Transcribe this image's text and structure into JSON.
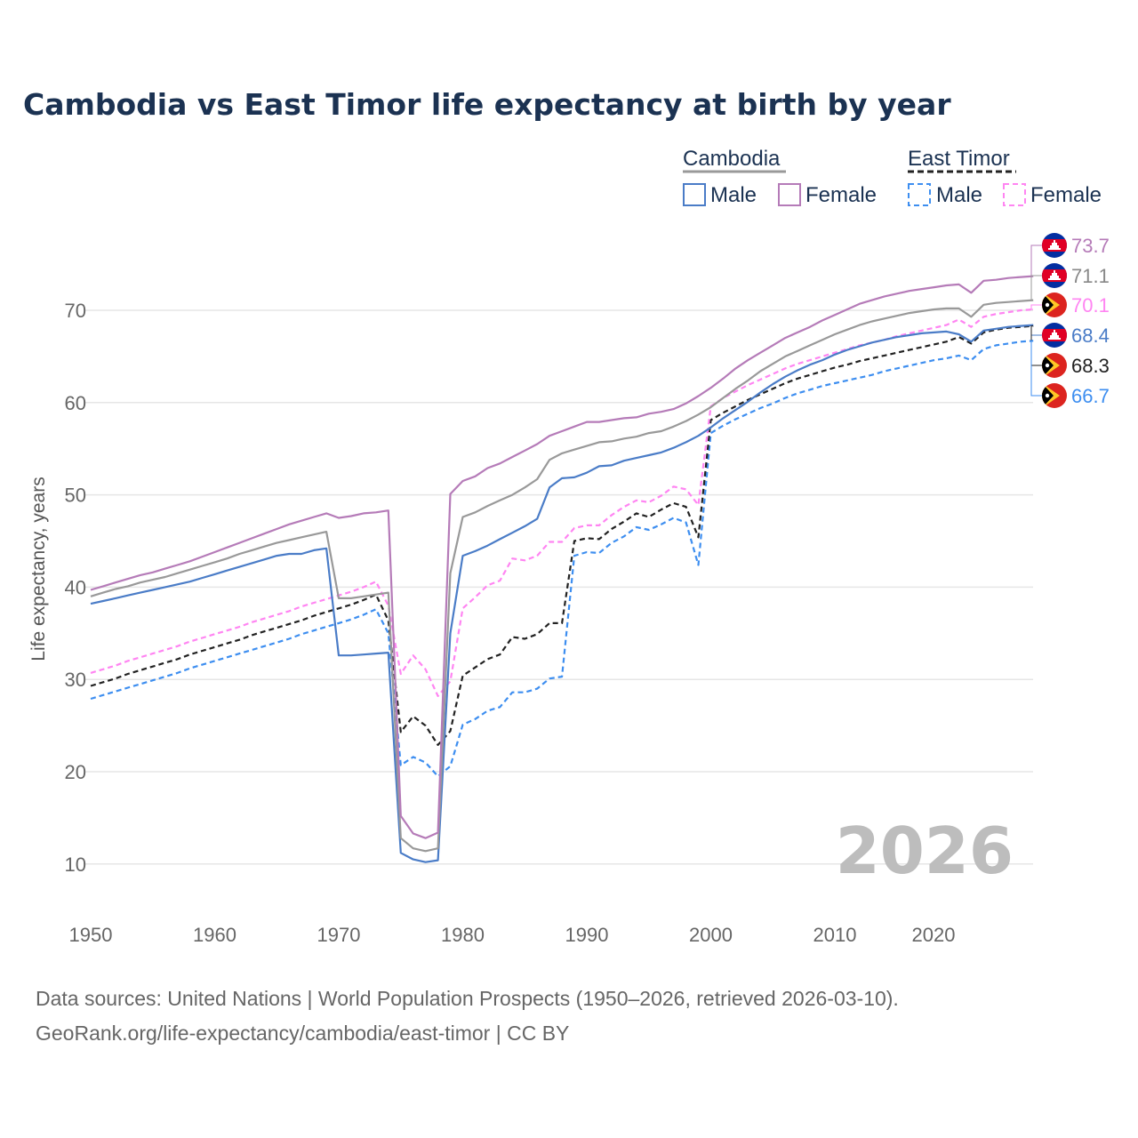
{
  "chart_data": {
    "type": "line",
    "title": "Cambodia vs East Timor life expectancy at birth by year",
    "xlabel": "",
    "ylabel": "Life expectancy, years",
    "xlim": [
      1950,
      2026
    ],
    "ylim": [
      5,
      78
    ],
    "x_ticks": [
      1950,
      1960,
      1970,
      1980,
      1990,
      2000,
      2010,
      2020
    ],
    "y_ticks": [
      10,
      20,
      30,
      40,
      50,
      60,
      70
    ],
    "grid": true,
    "year_watermark": "2026",
    "legend": {
      "placement": "top-right",
      "groups": [
        {
          "country": "Cambodia",
          "items": [
            "Male",
            "Female"
          ]
        },
        {
          "country": "East Timor",
          "items": [
            "Male",
            "Female"
          ]
        }
      ]
    },
    "x_start": 1950,
    "series": [
      {
        "id": "kh_f",
        "country": "Cambodia",
        "name": "Female",
        "color": "#b57bb8",
        "dashed": false,
        "end_label": "73.7",
        "flag": "cambodia",
        "values": [
          39.7,
          40.1,
          40.5,
          40.9,
          41.3,
          41.6,
          42.0,
          42.4,
          42.8,
          43.3,
          43.8,
          44.3,
          44.8,
          45.3,
          45.8,
          46.3,
          46.8,
          47.2,
          47.6,
          48.0,
          47.5,
          47.7,
          48.0,
          48.1,
          48.3,
          15.2,
          13.3,
          12.8,
          13.4,
          50.1,
          51.5,
          52.0,
          52.9,
          53.4,
          54.1,
          54.8,
          55.5,
          56.4,
          56.9,
          57.4,
          57.9,
          57.9,
          58.1,
          58.3,
          58.4,
          58.8,
          59.0,
          59.3,
          59.9,
          60.7,
          61.6,
          62.6,
          63.7,
          64.6,
          65.4,
          66.2,
          67.0,
          67.6,
          68.2,
          68.9,
          69.5,
          70.1,
          70.7,
          71.1,
          71.5,
          71.8,
          72.1,
          72.3,
          72.5,
          72.7,
          72.8,
          71.9,
          73.2,
          73.3,
          73.5,
          73.6,
          73.7
        ]
      },
      {
        "id": "kh_t",
        "country": "Cambodia",
        "name": "Total",
        "color": "#999999",
        "dashed": false,
        "end_label": "71.1",
        "flag": "cambodia",
        "values": [
          39.0,
          39.4,
          39.8,
          40.1,
          40.5,
          40.8,
          41.1,
          41.5,
          41.9,
          42.3,
          42.7,
          43.1,
          43.6,
          44.0,
          44.4,
          44.8,
          45.1,
          45.4,
          45.7,
          46.0,
          38.8,
          38.8,
          39.0,
          39.2,
          39.4,
          12.8,
          11.7,
          11.4,
          11.7,
          41.5,
          47.6,
          48.1,
          48.8,
          49.4,
          50.0,
          50.8,
          51.7,
          53.8,
          54.5,
          54.9,
          55.3,
          55.7,
          55.8,
          56.1,
          56.3,
          56.7,
          56.9,
          57.4,
          58.0,
          58.7,
          59.5,
          60.5,
          61.5,
          62.4,
          63.4,
          64.2,
          65.0,
          65.6,
          66.2,
          66.8,
          67.4,
          67.9,
          68.4,
          68.8,
          69.1,
          69.4,
          69.7,
          69.9,
          70.1,
          70.2,
          70.2,
          69.3,
          70.6,
          70.8,
          70.9,
          71.0,
          71.1
        ]
      },
      {
        "id": "tl_f",
        "country": "East Timor",
        "name": "Female",
        "color": "#ff85f2",
        "dashed": true,
        "end_label": "70.1",
        "flag": "east-timor",
        "values": [
          30.7,
          31.1,
          31.5,
          32.0,
          32.4,
          32.8,
          33.2,
          33.6,
          34.1,
          34.5,
          34.9,
          35.3,
          35.7,
          36.2,
          36.6,
          37.0,
          37.4,
          37.9,
          38.3,
          38.7,
          39.1,
          39.5,
          40.0,
          40.6,
          38.0,
          30.6,
          32.6,
          31.1,
          28.2,
          29.8,
          37.7,
          38.9,
          40.2,
          40.7,
          43.1,
          42.9,
          43.4,
          44.9,
          44.9,
          46.4,
          46.7,
          46.7,
          47.8,
          48.7,
          49.4,
          49.2,
          49.9,
          50.9,
          50.6,
          48.9,
          59.6,
          60.5,
          61.2,
          61.9,
          62.5,
          63.1,
          63.7,
          64.2,
          64.6,
          65.0,
          65.4,
          65.8,
          66.2,
          66.5,
          66.8,
          67.2,
          67.5,
          67.8,
          68.1,
          68.4,
          69.0,
          68.2,
          69.3,
          69.6,
          69.8,
          70.0,
          70.1
        ]
      },
      {
        "id": "kh_m",
        "country": "Cambodia",
        "name": "Male",
        "color": "#4a7cc7",
        "dashed": false,
        "end_label": "68.4",
        "flag": "cambodia",
        "values": [
          38.2,
          38.5,
          38.8,
          39.1,
          39.4,
          39.7,
          40.0,
          40.3,
          40.6,
          41.0,
          41.4,
          41.8,
          42.2,
          42.6,
          43.0,
          43.4,
          43.6,
          43.6,
          44.0,
          44.2,
          32.6,
          32.6,
          32.7,
          32.8,
          32.9,
          11.2,
          10.5,
          10.2,
          10.4,
          35.0,
          43.4,
          43.9,
          44.5,
          45.2,
          45.9,
          46.6,
          47.4,
          50.8,
          51.8,
          51.9,
          52.4,
          53.1,
          53.2,
          53.7,
          54.0,
          54.3,
          54.6,
          55.1,
          55.7,
          56.4,
          57.3,
          58.3,
          59.2,
          60.1,
          61.1,
          62.0,
          62.8,
          63.5,
          64.1,
          64.6,
          65.2,
          65.7,
          66.1,
          66.5,
          66.8,
          67.1,
          67.3,
          67.5,
          67.6,
          67.7,
          67.4,
          66.6,
          67.8,
          68.0,
          68.2,
          68.3,
          68.4
        ]
      },
      {
        "id": "tl_t",
        "country": "East Timor",
        "name": "Total",
        "color": "#222222",
        "dashed": true,
        "end_label": "68.3",
        "flag": "east-timor",
        "values": [
          29.3,
          29.7,
          30.1,
          30.6,
          31.0,
          31.4,
          31.8,
          32.2,
          32.7,
          33.1,
          33.5,
          33.9,
          34.3,
          34.8,
          35.2,
          35.6,
          36.0,
          36.4,
          36.9,
          37.3,
          37.7,
          38.1,
          38.6,
          39.2,
          36.4,
          24.3,
          26.0,
          25.0,
          22.9,
          24.4,
          30.4,
          31.3,
          32.2,
          32.7,
          34.6,
          34.4,
          34.9,
          36.1,
          36.1,
          45.0,
          45.3,
          45.2,
          46.3,
          47.1,
          48.0,
          47.6,
          48.4,
          49.1,
          48.7,
          45.4,
          58.1,
          58.9,
          59.6,
          60.3,
          60.9,
          61.5,
          62.1,
          62.6,
          63.0,
          63.4,
          63.8,
          64.1,
          64.5,
          64.8,
          65.1,
          65.4,
          65.7,
          66.0,
          66.3,
          66.6,
          67.1,
          66.4,
          67.6,
          67.9,
          68.1,
          68.2,
          68.3
        ]
      },
      {
        "id": "tl_m",
        "country": "East Timor",
        "name": "Male",
        "color": "#3d8ef0",
        "dashed": true,
        "end_label": "66.7",
        "flag": "east-timor",
        "values": [
          27.9,
          28.3,
          28.7,
          29.1,
          29.5,
          29.9,
          30.3,
          30.7,
          31.2,
          31.6,
          32.0,
          32.4,
          32.8,
          33.2,
          33.6,
          34.0,
          34.4,
          34.9,
          35.3,
          35.7,
          36.1,
          36.5,
          37.0,
          37.6,
          35.0,
          20.7,
          21.6,
          21.0,
          19.5,
          20.6,
          25.1,
          25.7,
          26.6,
          27.0,
          28.6,
          28.6,
          29.0,
          30.1,
          30.3,
          43.4,
          43.8,
          43.7,
          44.8,
          45.5,
          46.5,
          46.2,
          46.8,
          47.5,
          47.0,
          42.4,
          56.7,
          57.5,
          58.2,
          58.8,
          59.4,
          59.9,
          60.5,
          61.0,
          61.4,
          61.8,
          62.1,
          62.4,
          62.7,
          63.0,
          63.4,
          63.7,
          64.0,
          64.3,
          64.6,
          64.8,
          65.1,
          64.6,
          65.8,
          66.2,
          66.4,
          66.6,
          66.7
        ]
      }
    ]
  },
  "legend_labels": {
    "cambodia": "Cambodia",
    "east_timor": "East Timor",
    "male": "Male",
    "female": "Female"
  },
  "footer": {
    "line1": "Data sources: United Nations | World Population Prospects (1950–2026, retrieved 2026-03-10).",
    "line2": "GeoRank.org/life-expectancy/cambodia/east-timor | CC BY"
  }
}
